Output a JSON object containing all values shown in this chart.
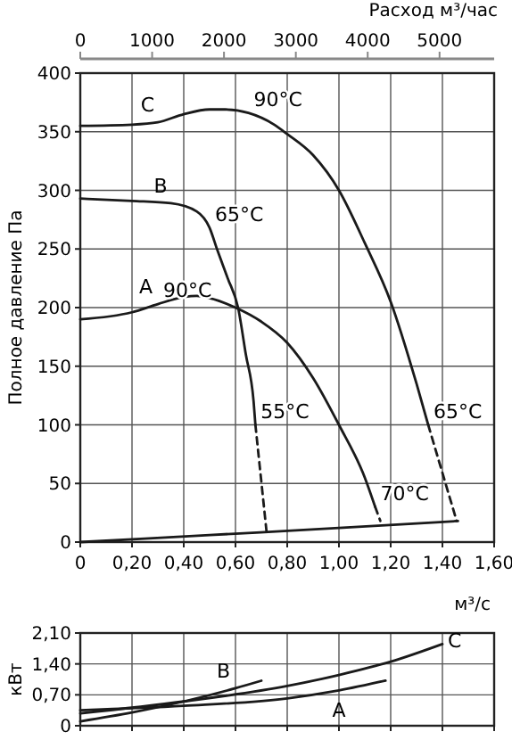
{
  "chart_data": [
    {
      "type": "line",
      "ylabel": "Полное давление Па",
      "xlabel": "м³/с",
      "x2label": "Расход м³/час",
      "xlim": [
        0,
        1.6
      ],
      "xticks": [
        0,
        {
          "value": 0.2,
          "label": "0,20"
        },
        {
          "value": 0.4,
          "label": "0,40"
        },
        {
          "value": 0.6,
          "label": "0,60"
        },
        {
          "value": 0.8,
          "label": "0,80"
        },
        {
          "value": 1.0,
          "label": "1,00"
        },
        {
          "value": 1.2,
          "label": "1,20"
        },
        {
          "value": 1.4,
          "label": "1,40"
        },
        {
          "value": 1.6,
          "label": "1,60"
        }
      ],
      "x2lim": [
        0,
        5760
      ],
      "x2ticks": [
        0,
        1000,
        2000,
        3000,
        4000,
        5000
      ],
      "ylim": [
        0,
        400
      ],
      "yticks": [
        0,
        50,
        100,
        150,
        200,
        250,
        300,
        350,
        400
      ],
      "grid": true,
      "series": [
        {
          "name": "C",
          "color": "#1a1a1a",
          "line_style": "solid",
          "x": [
            0,
            0.2,
            0.3,
            0.4,
            0.5,
            0.56,
            0.65,
            0.75,
            0.8,
            0.9,
            1.0,
            1.1,
            1.2,
            1.3,
            1.345
          ],
          "values": [
            355,
            356,
            358,
            365,
            369,
            369,
            366,
            356,
            348,
            330,
            300,
            255,
            205,
            135,
            100
          ]
        },
        {
          "color": "#1a1a1a",
          "line_style": "dashed",
          "x": [
            1.345,
            1.455
          ],
          "values": [
            100,
            18
          ]
        },
        {
          "name": "B",
          "color": "#1a1a1a",
          "line_style": "solid",
          "x": [
            0,
            0.2,
            0.35,
            0.45,
            0.5,
            0.53,
            0.57,
            0.61,
            0.64,
            0.67,
            0.677
          ],
          "values": [
            293,
            291,
            289,
            282,
            268,
            249,
            225,
            200,
            160,
            120,
            100
          ]
        },
        {
          "color": "#1a1a1a",
          "line_style": "dashed",
          "x": [
            0.677,
            0.72
          ],
          "values": [
            100,
            9
          ]
        },
        {
          "name": "A",
          "color": "#1a1a1a",
          "line_style": "solid",
          "x": [
            0,
            0.2,
            0.3,
            0.4,
            0.45,
            0.5,
            0.6,
            0.7,
            0.8,
            0.9,
            1.0,
            1.1,
            1.14
          ],
          "values": [
            190,
            196,
            203,
            209,
            210,
            208,
            200,
            188,
            170,
            140,
            100,
            55,
            30
          ]
        },
        {
          "color": "#1a1a1a",
          "line_style": "dashed",
          "x": [
            1.14,
            1.16
          ],
          "values": [
            30,
            18
          ]
        },
        {
          "color": "#1a1a1a",
          "line_style": "solid",
          "x": [
            0,
            0.5,
            1.0,
            1.46
          ],
          "values": [
            0,
            6,
            12,
            18
          ]
        }
      ],
      "annotations": [
        {
          "text": "90°C",
          "x": 0.65,
          "y": 366
        },
        {
          "text": "65°C",
          "x": 0.5,
          "y": 268
        },
        {
          "text": "90°C",
          "x": 0.3,
          "y": 203
        },
        {
          "text": "55°C",
          "x": 0.677,
          "y": 100
        },
        {
          "text": "70°C",
          "x": 1.14,
          "y": 30
        },
        {
          "text": "65°C",
          "x": 1.345,
          "y": 100
        }
      ]
    },
    {
      "type": "line",
      "ylabel": "кВт",
      "xlim": [
        0,
        1.6
      ],
      "xticks": [
        {
          "value": 0,
          "label": null
        },
        {
          "value": 0.2,
          "label": null
        },
        {
          "value": 0.4,
          "label": null
        },
        {
          "value": 0.6,
          "label": null
        },
        {
          "value": 0.8,
          "label": null
        },
        {
          "value": 1.0,
          "label": null
        },
        {
          "value": 1.2,
          "label": null
        },
        {
          "value": 1.4,
          "label": null
        },
        {
          "value": 1.6,
          "label": null
        }
      ],
      "ylim": [
        0,
        2.1
      ],
      "yticks": [
        0,
        {
          "value": 0.7,
          "label": "0,70"
        },
        {
          "value": 1.4,
          "label": "1,40"
        },
        {
          "value": 2.1,
          "label": "2,10"
        }
      ],
      "grid": true,
      "tick_labels": "y",
      "series": [
        {
          "name": "C",
          "color": "#1a1a1a",
          "x": [
            0,
            0.4,
            0.8,
            1.0,
            1.2,
            1.4
          ],
          "values": [
            0.28,
            0.55,
            0.9,
            1.15,
            1.45,
            1.85
          ]
        },
        {
          "name": "B",
          "color": "#1a1a1a",
          "x": [
            0,
            0.2,
            0.4,
            0.6,
            0.7
          ],
          "values": [
            0.1,
            0.3,
            0.55,
            0.85,
            1.02
          ]
        },
        {
          "name": "A",
          "color": "#1a1a1a",
          "x": [
            0,
            0.4,
            0.8,
            1.0,
            1.18
          ],
          "values": [
            0.35,
            0.45,
            0.62,
            0.8,
            1.02
          ]
        }
      ]
    }
  ]
}
